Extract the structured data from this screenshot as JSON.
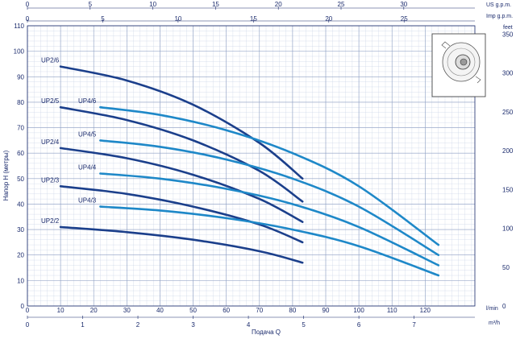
{
  "chart_data": {
    "type": "line",
    "xlabel": "Подача Q",
    "ylabel": "Напор H (метры)",
    "x_unit": "l/min",
    "xlim": [
      0,
      135
    ],
    "ylim": [
      0,
      110
    ],
    "x_ticks": [
      0,
      10,
      20,
      30,
      40,
      50,
      60,
      70,
      80,
      90,
      100,
      110,
      120
    ],
    "y_ticks": [
      0,
      10,
      20,
      30,
      40,
      50,
      60,
      70,
      80,
      90,
      100,
      110
    ],
    "grid": true,
    "top_axes": [
      {
        "unit": "US g.p.m.",
        "ticks": [
          0,
          5,
          10,
          15,
          20,
          25,
          30
        ]
      },
      {
        "unit": "Imp g.p.m.",
        "ticks": [
          0,
          5,
          10,
          15,
          20,
          25
        ]
      }
    ],
    "bottom_axis2": {
      "unit": "m³/h",
      "ticks": [
        0,
        1,
        2,
        3,
        4,
        5,
        6,
        7
      ]
    },
    "right_axis": {
      "unit": "feet",
      "ticks": [
        0,
        50,
        100,
        150,
        200,
        250,
        300,
        350
      ]
    },
    "colors": {
      "up2": "#1b3f8b",
      "up4": "#1e88c8",
      "grid": "#c8d2e6",
      "text": "#1a2a6c"
    },
    "series": [
      {
        "name": "UP2/6",
        "group": "up2",
        "x": [
          10,
          30,
          50,
          70,
          83
        ],
        "y": [
          94,
          88.5,
          79,
          64,
          50
        ]
      },
      {
        "name": "UP2/5",
        "group": "up2",
        "x": [
          10,
          30,
          50,
          70,
          83
        ],
        "y": [
          78,
          73,
          65,
          53,
          41
        ]
      },
      {
        "name": "UP2/4",
        "group": "up2",
        "x": [
          10,
          30,
          50,
          70,
          83
        ],
        "y": [
          62,
          58,
          51.5,
          42,
          33
        ]
      },
      {
        "name": "UP2/3",
        "group": "up2",
        "x": [
          10,
          30,
          50,
          70,
          83
        ],
        "y": [
          47,
          44,
          39,
          32,
          25
        ]
      },
      {
        "name": "UP2/2",
        "group": "up2",
        "x": [
          10,
          30,
          50,
          70,
          83
        ],
        "y": [
          31,
          29,
          26,
          21.5,
          17
        ]
      },
      {
        "name": "UP4/6",
        "group": "up4",
        "x": [
          22,
          40,
          60,
          80,
          100,
          124
        ],
        "y": [
          78,
          75,
          69,
          60,
          47,
          24
        ]
      },
      {
        "name": "UP4/5",
        "group": "up4",
        "x": [
          22,
          40,
          60,
          80,
          100,
          124
        ],
        "y": [
          65,
          62.5,
          57.5,
          50,
          39,
          20
        ]
      },
      {
        "name": "UP4/4",
        "group": "up4",
        "x": [
          22,
          40,
          60,
          80,
          100,
          124
        ],
        "y": [
          52,
          50,
          46,
          40,
          31,
          16
        ]
      },
      {
        "name": "UP4/3",
        "group": "up4",
        "x": [
          22,
          40,
          60,
          80,
          100,
          124
        ],
        "y": [
          39,
          37.5,
          34.5,
          30,
          23.5,
          12
        ]
      }
    ]
  }
}
